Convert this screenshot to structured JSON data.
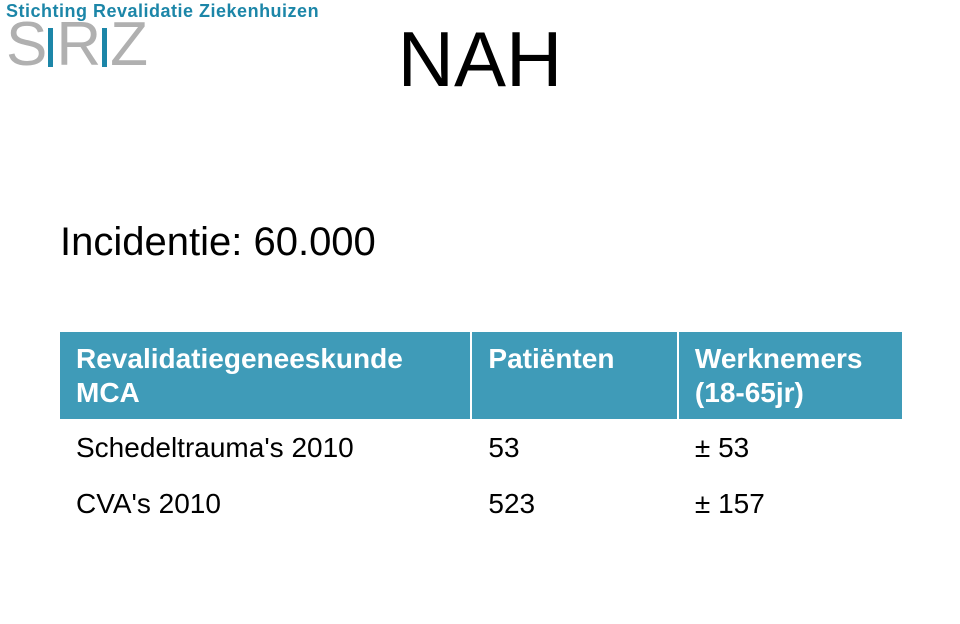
{
  "logo": {
    "orgName": "Stichting Revalidatie Ziekenhuizen",
    "letters": {
      "s": "S",
      "r": "R",
      "z": "Z"
    },
    "brandColor": "#1c86a8",
    "grayColor": "#b0b0b0"
  },
  "title": "NAH",
  "subtitle": "Incidentie: 60.000",
  "table": {
    "headers": [
      "Revalidatiegeneeskunde MCA",
      "Patiënten",
      "Werknemers (18-65jr)"
    ],
    "rows": [
      [
        "Schedeltrauma's 2010",
        "53",
        "± 53"
      ],
      [
        "CVA's 2010",
        "523",
        "± 157"
      ]
    ],
    "headerBg": "#3f9bb8",
    "headerColor": "#ffffff",
    "cellBg": "#ffffff",
    "cellColor": "#000000",
    "fontSize": 28
  }
}
